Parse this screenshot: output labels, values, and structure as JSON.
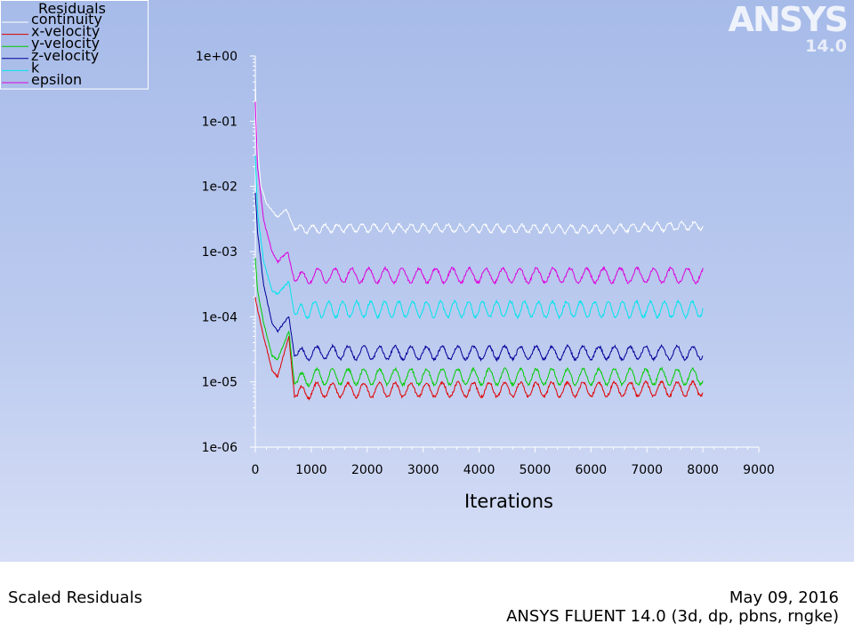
{
  "logo": {
    "brand": "ANSYS",
    "version": "14.0"
  },
  "footer": {
    "left": "Scaled Residuals",
    "date": "May 09, 2016",
    "solver": "ANSYS FLUENT 14.0 (3d, dp, pbns, rngke)"
  },
  "chart_data": {
    "type": "line",
    "title": "",
    "xlabel": "Iterations",
    "ylabel": "",
    "xlim": [
      0,
      9000
    ],
    "ylim": [
      1e-06,
      1
    ],
    "yscale": "log",
    "grid": false,
    "legend_title": "Residuals",
    "legend_position": "top-left",
    "x_ticks": [
      "0",
      "1000",
      "2000",
      "3000",
      "4000",
      "5000",
      "6000",
      "7000",
      "8000",
      "9000"
    ],
    "y_ticks": [
      "1e+00",
      "1e-01",
      "1e-02",
      "1e-03",
      "1e-04",
      "1e-05",
      "1e-06"
    ],
    "series": [
      {
        "name": "continuity",
        "color": "#ffffff",
        "points": [
          [
            0,
            0.45
          ],
          [
            30,
            0.05
          ],
          [
            100,
            0.01
          ],
          [
            200,
            0.0055
          ],
          [
            400,
            0.0033
          ],
          [
            550,
            0.0045
          ],
          [
            700,
            0.0022
          ],
          [
            1500,
            0.0023
          ],
          [
            3000,
            0.0023
          ],
          [
            6000,
            0.0022
          ],
          [
            8000,
            0.0025
          ]
        ],
        "osc_amp": 0.06,
        "osc_period": 220
      },
      {
        "name": "x-velocity",
        "color": "#e00000",
        "points": [
          [
            0,
            0.0002
          ],
          [
            40,
            0.00013
          ],
          [
            150,
            5e-05
          ],
          [
            300,
            1.5e-05
          ],
          [
            400,
            1.2e-05
          ],
          [
            600,
            5e-05
          ],
          [
            700,
            6e-06
          ],
          [
            1000,
            7.5e-06
          ],
          [
            8000,
            7.8e-06
          ]
        ],
        "osc_amp": 0.11,
        "osc_period": 280
      },
      {
        "name": "y-velocity",
        "color": "#00cc00",
        "points": [
          [
            0,
            0.0008
          ],
          [
            40,
            0.00025
          ],
          [
            150,
            8e-05
          ],
          [
            300,
            2.5e-05
          ],
          [
            400,
            2.2e-05
          ],
          [
            600,
            6e-05
          ],
          [
            700,
            9.5e-06
          ],
          [
            1000,
            1.2e-05
          ],
          [
            8000,
            1.2e-05
          ]
        ],
        "osc_amp": 0.12,
        "osc_period": 280
      },
      {
        "name": "z-velocity",
        "color": "#000099",
        "points": [
          [
            0,
            0.008
          ],
          [
            40,
            0.002
          ],
          [
            150,
            0.0003
          ],
          [
            300,
            8e-05
          ],
          [
            400,
            6e-05
          ],
          [
            600,
            0.0001
          ],
          [
            700,
            2.5e-05
          ],
          [
            1000,
            2.8e-05
          ],
          [
            8000,
            2.8e-05
          ]
        ],
        "osc_amp": 0.1,
        "osc_period": 280
      },
      {
        "name": "k",
        "color": "#00e5ee",
        "points": [
          [
            0,
            0.03
          ],
          [
            40,
            0.004
          ],
          [
            150,
            0.0007
          ],
          [
            300,
            0.00025
          ],
          [
            400,
            0.00022
          ],
          [
            600,
            0.00035
          ],
          [
            700,
            0.00011
          ],
          [
            1000,
            0.00013
          ],
          [
            8000,
            0.00013
          ]
        ],
        "osc_amp": 0.12,
        "osc_period": 250
      },
      {
        "name": "epsilon",
        "color": "#dd00dd",
        "points": [
          [
            0,
            0.2
          ],
          [
            40,
            0.02
          ],
          [
            150,
            0.003
          ],
          [
            300,
            0.001
          ],
          [
            400,
            0.0007
          ],
          [
            580,
            0.001
          ],
          [
            700,
            0.00035
          ],
          [
            1000,
            0.00043
          ],
          [
            8000,
            0.00043
          ]
        ],
        "osc_amp": 0.11,
        "osc_period": 300
      }
    ]
  }
}
